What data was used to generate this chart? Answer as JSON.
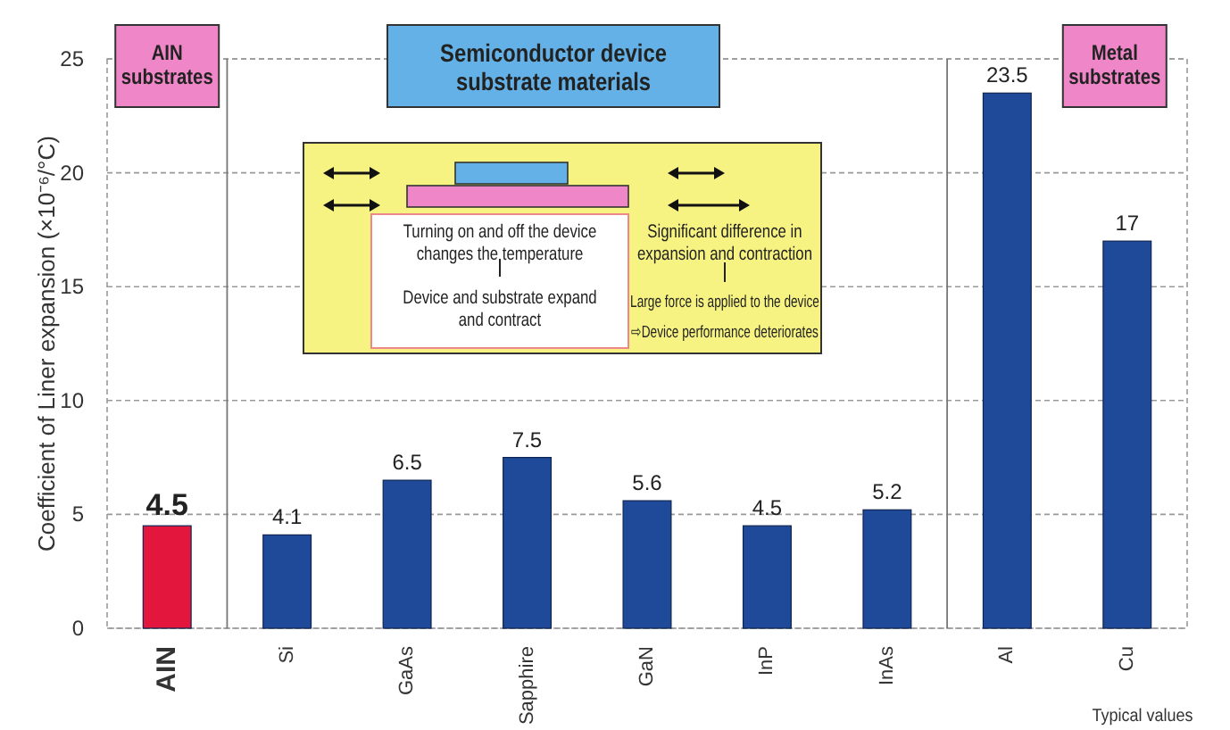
{
  "chart_data": {
    "type": "bar",
    "ylabel": "Coefficient of Liner expansion (×10⁻⁶/°C)",
    "categories": [
      "AIN",
      "Si",
      "GaAs",
      "Sapphire",
      "GaN",
      "InP",
      "InAs",
      "Al",
      "Cu"
    ],
    "values": [
      4.5,
      4.1,
      6.5,
      7.5,
      5.6,
      4.5,
      5.2,
      23.5,
      17
    ],
    "colors": [
      "#e3173e",
      "#1f4a9a",
      "#1f4a9a",
      "#1f4a9a",
      "#1f4a9a",
      "#1f4a9a",
      "#1f4a9a",
      "#1f4a9a",
      "#1f4a9a"
    ],
    "ylim": [
      0,
      25
    ],
    "yticks": [
      0,
      5,
      10,
      15,
      20,
      25
    ],
    "grid": "y",
    "data_labels": true,
    "annotations": [
      "AIN substrates",
      "Semiconductor device substrate materials",
      "Metal substrates",
      "Turning on and off the device changes the temperature",
      "Device and substrate expand and contract",
      "Significant difference in expansion and contraction",
      "Large force is applied to the device",
      "⇨Device performance deteriorates",
      "Typical values"
    ]
  }
}
